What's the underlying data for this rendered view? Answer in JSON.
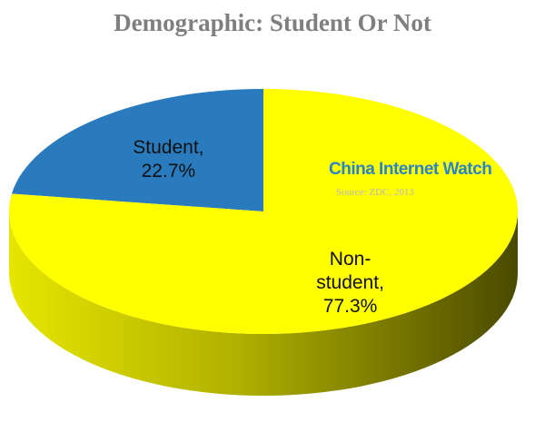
{
  "chart_data": {
    "type": "pie3d",
    "title": "Demographic: Student Or Not",
    "categories": [
      "Student",
      "Non-student"
    ],
    "values": [
      22.7,
      77.3
    ],
    "value_labels": [
      "Student, 22.7%",
      "Non-student, 77.3%"
    ],
    "colors": [
      "#2a7bbd",
      "#ffff00"
    ],
    "annotations": [
      "China Internet Watch",
      "Source: ZDC, 2013"
    ]
  }
}
